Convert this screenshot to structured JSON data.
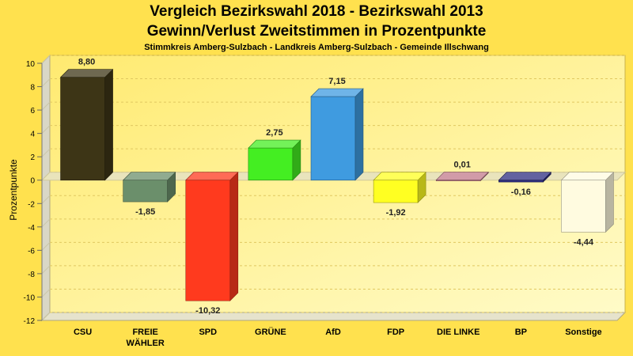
{
  "chart_data": {
    "type": "bar",
    "title": "Vergleich Bezirkswahl 2018 - Bezirkswahl 2013",
    "subtitle": "Gewinn/Verlust Zweitstimmen in Prozentpunkte",
    "subtitle2": "Stimmkreis Amberg-Sulzbach - Landkreis Amberg-Sulzbach - Gemeinde Illschwang",
    "ylabel": "Prozentpunkte",
    "xlabel": "",
    "ylim": [
      -12,
      10
    ],
    "ytick_step": 2,
    "grid": true,
    "categories": [
      [
        "CSU"
      ],
      [
        "FREIE",
        "WÄHLER"
      ],
      [
        "SPD"
      ],
      [
        "GRÜNE"
      ],
      [
        "AfD"
      ],
      [
        "FDP"
      ],
      [
        "DIE LINKE"
      ],
      [
        "BP"
      ],
      [
        "Sonstige"
      ]
    ],
    "values": [
      8.8,
      -1.85,
      -10.32,
      2.75,
      7.15,
      -1.92,
      0.01,
      -0.16,
      -4.44
    ],
    "value_labels": [
      "8,80",
      "-1,85",
      "-10,32",
      "2,75",
      "7,15",
      "-1,92",
      "0,01",
      "-0,16",
      "-4,44"
    ],
    "colors": [
      "#3d3516",
      "#6b8f6b",
      "#ff3a1e",
      "#44ee22",
      "#3f9be0",
      "#ffff22",
      "#c27a8b",
      "#2e2e80",
      "#fffbe0"
    ]
  }
}
